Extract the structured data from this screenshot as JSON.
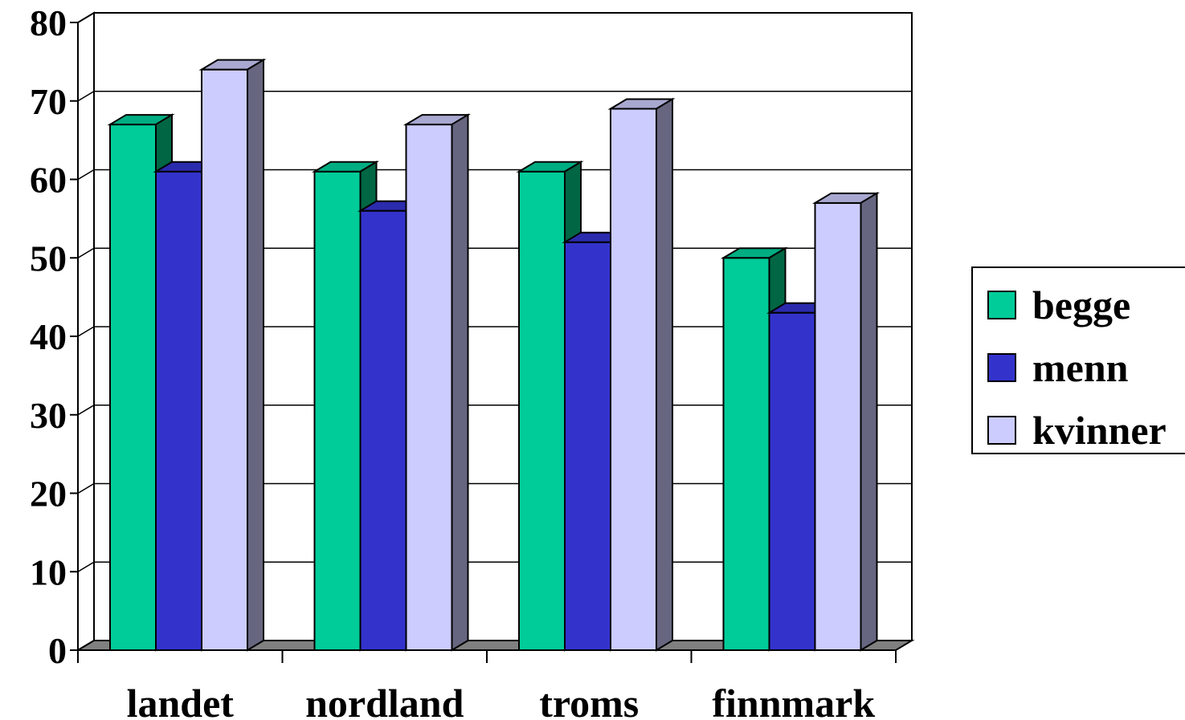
{
  "chart_data": {
    "type": "bar",
    "categories": [
      "landet",
      "nordland",
      "troms",
      "finnmark"
    ],
    "series": [
      {
        "name": "begge",
        "values": [
          67,
          61,
          61,
          50
        ],
        "color": "#00CC99"
      },
      {
        "name": "menn",
        "values": [
          61,
          56,
          52,
          43
        ],
        "color": "#3333CC"
      },
      {
        "name": "kvinner",
        "values": [
          74,
          67,
          69,
          57
        ],
        "color": "#CCCCFF"
      }
    ],
    "ylim": [
      0,
      80
    ],
    "yticks": [
      "0",
      "10",
      "20",
      "30",
      "40",
      "50",
      "60",
      "70",
      "80"
    ],
    "grid": true,
    "legend_position": "right",
    "style": "3d-clustered-column"
  }
}
